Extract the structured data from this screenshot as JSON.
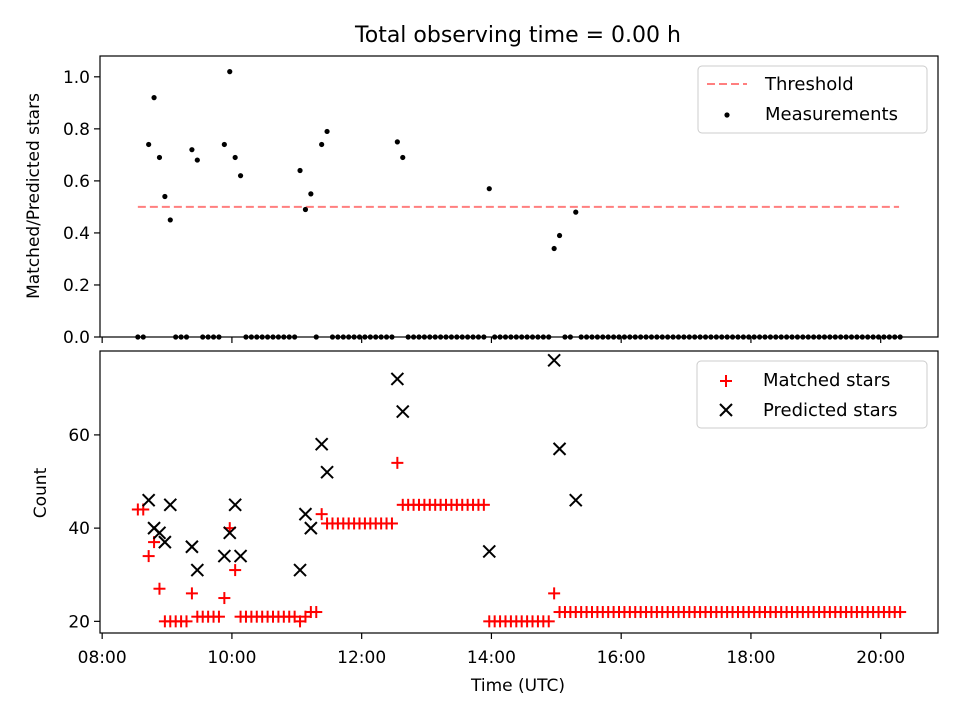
{
  "figure": {
    "title": "Total observing time = 0.00 h",
    "xlabel": "Time (UTC)",
    "x_tick_labels": [
      "08:00",
      "10:00",
      "12:00",
      "14:00",
      "16:00",
      "18:00",
      "20:00"
    ]
  },
  "chart_data": [
    {
      "type": "scatter",
      "ylabel": "Matched/Predicted stars",
      "xlim": [
        "07:58",
        "20:53"
      ],
      "ylim": [
        0,
        1.08
      ],
      "y_ticks": [
        "0.0",
        "0.2",
        "0.4",
        "0.6",
        "0.8",
        "1.0"
      ],
      "legend_position": "top-right",
      "threshold": {
        "name": "Threshold",
        "value": 0.5,
        "x_start": "08:33",
        "x_end": "20:17",
        "color": "#ff7f7f"
      },
      "series": [
        {
          "name": "Measurements",
          "color": "#000000",
          "points": [
            [
              "08:43",
              0.74
            ],
            [
              "08:48",
              0.92
            ],
            [
              "08:53",
              0.69
            ],
            [
              "08:58",
              0.54
            ],
            [
              "09:03",
              0.45
            ],
            [
              "09:23",
              0.72
            ],
            [
              "09:28",
              0.68
            ],
            [
              "09:53",
              0.74
            ],
            [
              "09:58",
              1.02
            ],
            [
              "10:03",
              0.69
            ],
            [
              "10:08",
              0.62
            ],
            [
              "11:03",
              0.64
            ],
            [
              "11:08",
              0.49
            ],
            [
              "11:13",
              0.55
            ],
            [
              "11:23",
              0.74
            ],
            [
              "11:28",
              0.79
            ],
            [
              "12:33",
              0.75
            ],
            [
              "12:38",
              0.69
            ],
            [
              "13:58",
              0.57
            ],
            [
              "14:58",
              0.34
            ],
            [
              "15:03",
              0.39
            ],
            [
              "15:18",
              0.48
            ]
          ],
          "zero_points_start": "08:33",
          "zero_points_end": "20:18",
          "zero_points_step_minutes": 5
        }
      ]
    },
    {
      "type": "scatter",
      "ylabel": "Count",
      "xlim": [
        "07:58",
        "20:53"
      ],
      "ylim": [
        17.5,
        78
      ],
      "y_ticks": [
        "20",
        "40",
        "60"
      ],
      "legend_position": "top-right",
      "series": [
        {
          "name": "Matched stars",
          "marker": "plus",
          "color": "#ff0000",
          "points": [
            [
              "08:33",
              44
            ],
            [
              "08:38",
              44
            ],
            [
              "08:43",
              34
            ],
            [
              "08:48",
              37
            ],
            [
              "08:53",
              27
            ],
            [
              "08:58",
              20
            ],
            [
              "09:03",
              20
            ],
            [
              "09:08",
              20
            ],
            [
              "09:13",
              20
            ],
            [
              "09:18",
              20
            ],
            [
              "09:23",
              26
            ],
            [
              "09:28",
              21
            ],
            [
              "09:33",
              21
            ],
            [
              "09:38",
              21
            ],
            [
              "09:43",
              21
            ],
            [
              "09:48",
              21
            ],
            [
              "09:53",
              25
            ],
            [
              "09:58",
              40
            ],
            [
              "10:03",
              31
            ],
            [
              "10:08",
              21
            ],
            [
              "10:13",
              21
            ],
            [
              "10:18",
              21
            ],
            [
              "10:23",
              21
            ],
            [
              "10:28",
              21
            ],
            [
              "10:33",
              21
            ],
            [
              "10:38",
              21
            ],
            [
              "10:43",
              21
            ],
            [
              "10:48",
              21
            ],
            [
              "10:53",
              21
            ],
            [
              "10:58",
              21
            ],
            [
              "11:03",
              20
            ],
            [
              "11:08",
              21
            ],
            [
              "11:13",
              22
            ],
            [
              "11:18",
              22
            ],
            [
              "11:23",
              43
            ],
            [
              "11:28",
              41
            ],
            [
              "11:33",
              41
            ],
            [
              "11:38",
              41
            ],
            [
              "11:43",
              41
            ],
            [
              "11:48",
              41
            ],
            [
              "11:53",
              41
            ],
            [
              "11:58",
              41
            ],
            [
              "12:03",
              41
            ],
            [
              "12:08",
              41
            ],
            [
              "12:13",
              41
            ],
            [
              "12:18",
              41
            ],
            [
              "12:23",
              41
            ],
            [
              "12:28",
              41
            ],
            [
              "12:33",
              54
            ],
            [
              "12:38",
              45
            ],
            [
              "12:43",
              45
            ],
            [
              "12:48",
              45
            ],
            [
              "12:53",
              45
            ],
            [
              "12:58",
              45
            ],
            [
              "13:03",
              45
            ],
            [
              "13:08",
              45
            ],
            [
              "13:13",
              45
            ],
            [
              "13:18",
              45
            ],
            [
              "13:23",
              45
            ],
            [
              "13:28",
              45
            ],
            [
              "13:33",
              45
            ],
            [
              "13:38",
              45
            ],
            [
              "13:43",
              45
            ],
            [
              "13:48",
              45
            ],
            [
              "13:53",
              45
            ],
            [
              "13:58",
              20
            ],
            [
              "14:03",
              20
            ],
            [
              "14:08",
              20
            ],
            [
              "14:13",
              20
            ],
            [
              "14:18",
              20
            ],
            [
              "14:23",
              20
            ],
            [
              "14:28",
              20
            ],
            [
              "14:33",
              20
            ],
            [
              "14:38",
              20
            ],
            [
              "14:43",
              20
            ],
            [
              "14:48",
              20
            ],
            [
              "14:53",
              20
            ],
            [
              "14:58",
              26
            ],
            [
              "15:03",
              22
            ]
          ],
          "constant_run": {
            "start": "15:08",
            "end": "20:18",
            "step_minutes": 5,
            "value": 22
          }
        },
        {
          "name": "Predicted stars",
          "marker": "x",
          "color": "#000000",
          "points": [
            [
              "08:43",
              46
            ],
            [
              "08:48",
              40
            ],
            [
              "08:53",
              39
            ],
            [
              "08:58",
              37
            ],
            [
              "09:03",
              45
            ],
            [
              "09:23",
              36
            ],
            [
              "09:28",
              31
            ],
            [
              "09:53",
              34
            ],
            [
              "09:58",
              39
            ],
            [
              "10:03",
              45
            ],
            [
              "10:08",
              34
            ],
            [
              "11:03",
              31
            ],
            [
              "11:08",
              43
            ],
            [
              "11:13",
              40
            ],
            [
              "11:23",
              58
            ],
            [
              "11:28",
              52
            ],
            [
              "12:33",
              72
            ],
            [
              "12:38",
              65
            ],
            [
              "13:58",
              35
            ],
            [
              "14:58",
              76
            ],
            [
              "15:03",
              57
            ],
            [
              "15:18",
              46
            ]
          ]
        }
      ]
    }
  ]
}
